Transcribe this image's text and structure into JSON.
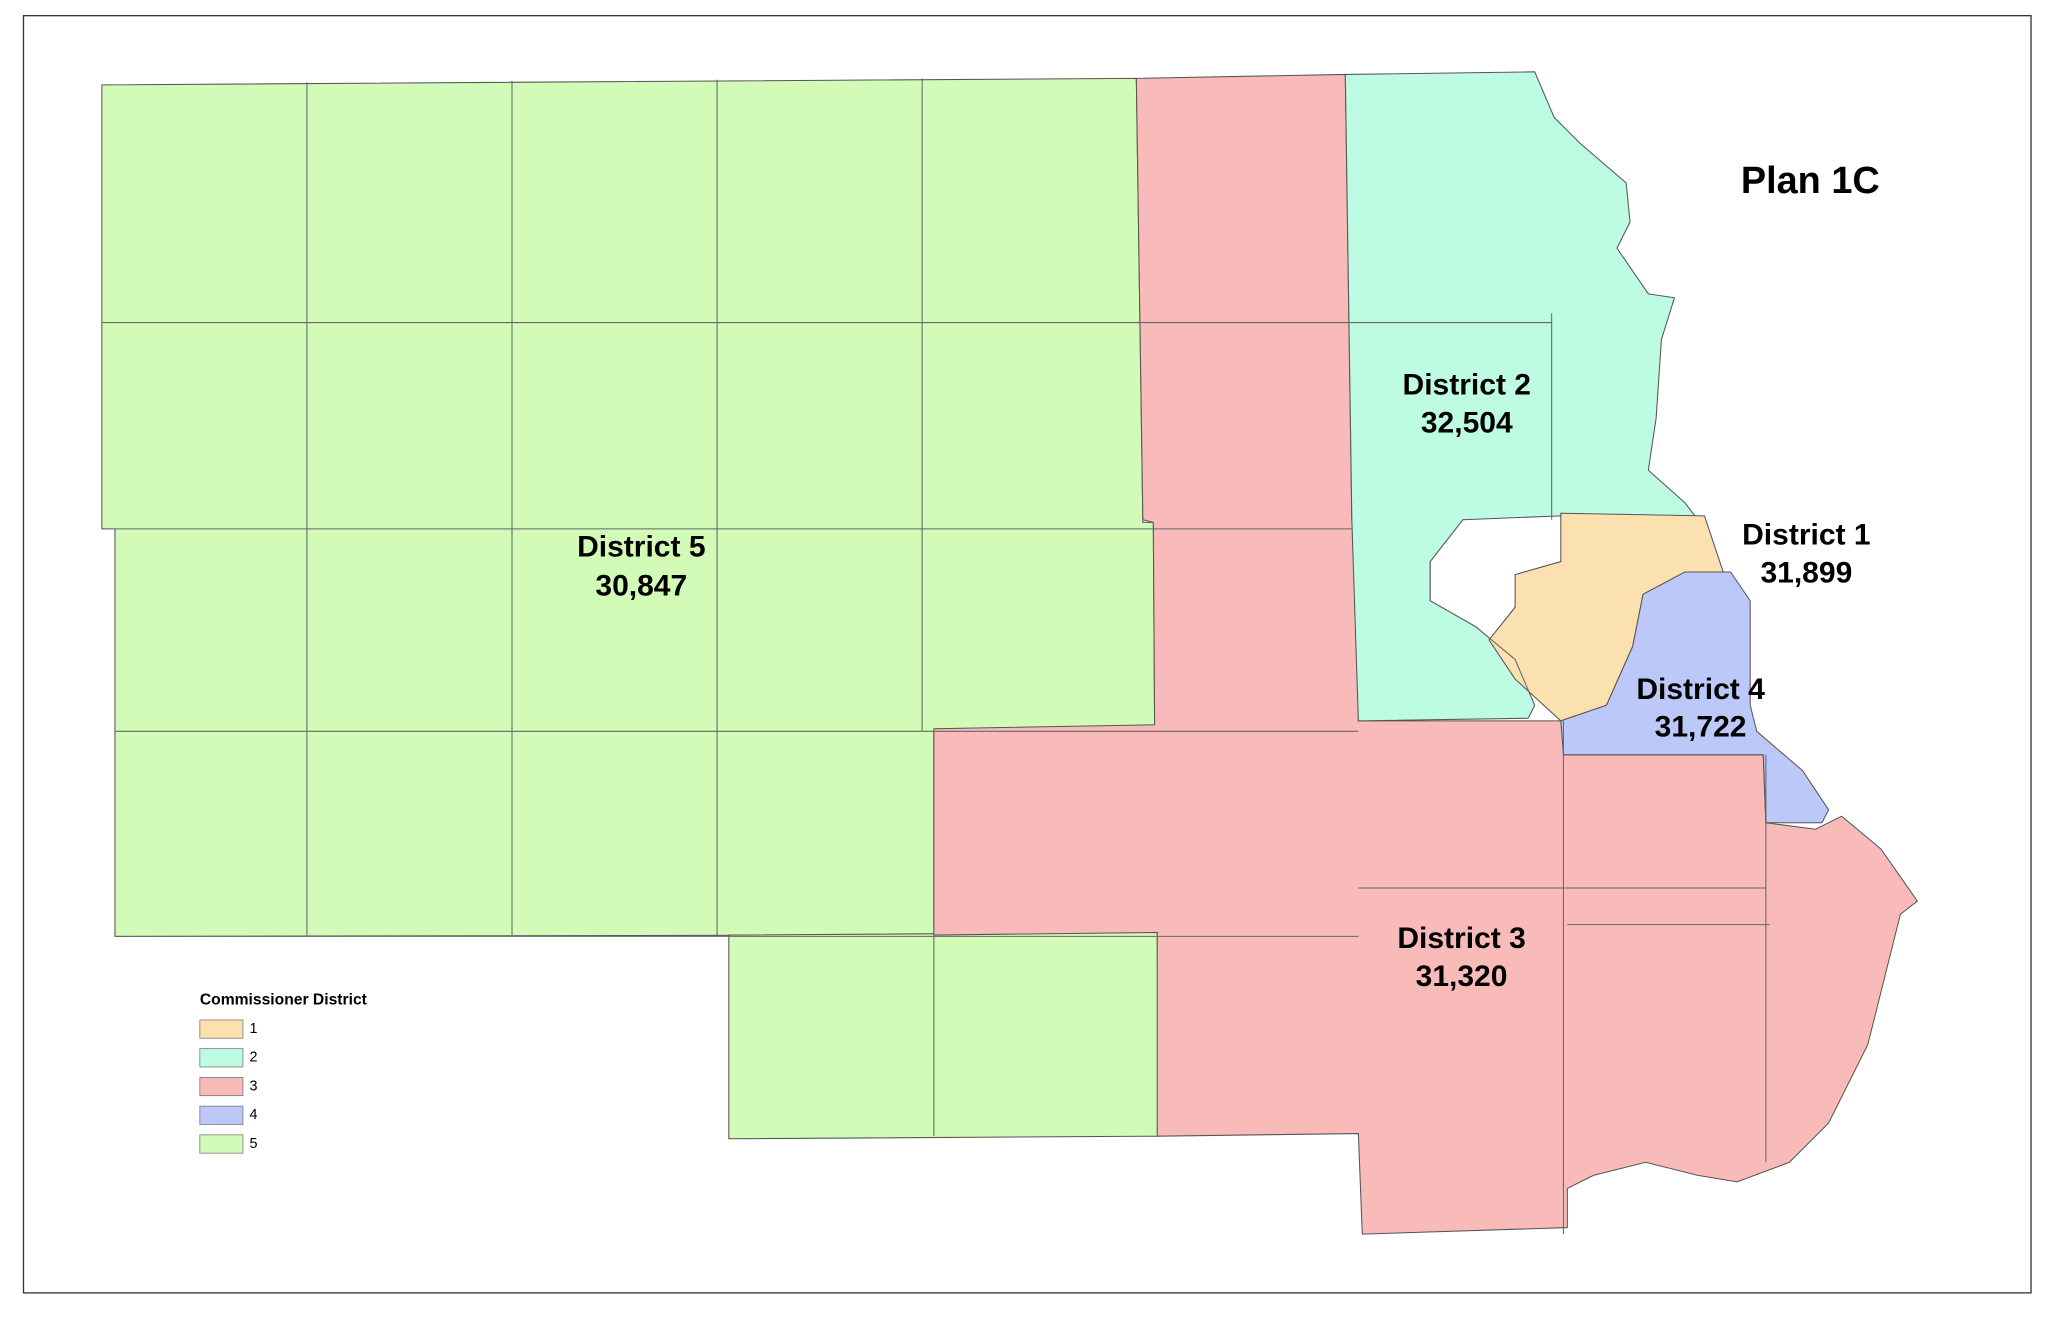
{
  "title": "Plan 1C",
  "districts": [
    {
      "name": "District 1",
      "population": "31,899",
      "color": "#fbe0b0"
    },
    {
      "name": "District 2",
      "population": "32,504",
      "color": "#bdfbe3"
    },
    {
      "name": "District 3",
      "population": "31,320",
      "color": "#f9baba"
    },
    {
      "name": "District 4",
      "population": "31,722",
      "color": "#bcc8f8"
    },
    {
      "name": "District 5",
      "population": "30,847",
      "color": "#d3fbb8"
    }
  ],
  "legend": {
    "title": "Commissioner District",
    "items": [
      "1",
      "2",
      "3",
      "4",
      "5"
    ]
  }
}
